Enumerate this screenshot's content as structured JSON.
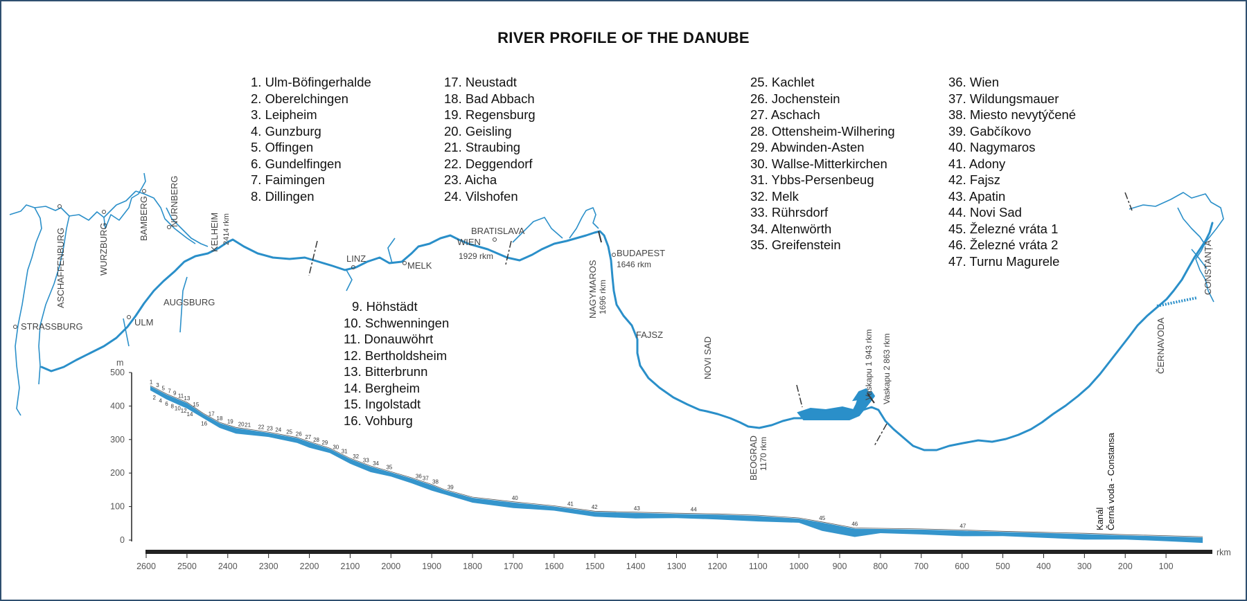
{
  "title": "RIVER PROFILE OF THE DANUBE",
  "legend_columns": [
    [
      "1. Ulm-Böfingerhalde",
      "2. Oberelchingen",
      "3. Leipheim",
      "4. Gunzburg",
      "5. Offingen",
      "6. Gundelfingen",
      "7. Faimingen",
      "8. Dillingen"
    ],
    [
      "17. Neustadt",
      "18. Bad Abbach",
      "19. Regensburg",
      "20. Geisling",
      "21. Straubing",
      "22. Deggendorf",
      "23. Aicha",
      "24. Vilshofen"
    ],
    [
      "9. Höhstädt",
      "10. Schwenningen",
      "11. Donauwöhrt",
      "12. Bertholdsheim",
      "13. Bitterbrunn",
      "14. Bergheim",
      "15. Ingolstadt",
      "16. Vohburg"
    ],
    [
      "25. Kachlet",
      "26. Jochenstein",
      "27. Aschach",
      "28. Ottensheim-Wilhering",
      "29. Abwinden-Asten",
      "30. Wallse-Mitterkirchen",
      "31. Ybbs-Persenbeug",
      "32. Melk",
      "33. Rührsdorf",
      "34. Altenwörth",
      "35. Greifenstein"
    ],
    [
      "36. Wien",
      "37. Wildungsmauer",
      "38. Miesto nevytýčené",
      "39. Gabčíkovo",
      "40. Nagymaros",
      "41. Adony",
      "42. Fajsz",
      "43. Apatin",
      "44. Novi Sad",
      "45. Železné vráta 1",
      "46. Železné vráta 2",
      "47. Turnu Magurele"
    ]
  ],
  "map_labels": {
    "strassburg": "STRASSBURG",
    "aschaffenburg": "ASCHAFFENBURG",
    "wurzburg": "WURZBURG",
    "bamberg": "BAMBERG",
    "nurnberg": "NURNBERG",
    "kelheim": "KELHEIM",
    "kelheim_rkm": "2414 rkm",
    "ulm": "ULM",
    "augsburg": "AUGSBURG",
    "linz": "LINZ",
    "melk": "MELK",
    "wien": "WIEN",
    "wien_rkm": "1929 rkm",
    "bratislava": "BRATISLAVA",
    "nagymaros": "NAGYMAROS",
    "nagymaros_rkm": "1696 rkm",
    "budapest": "BUDAPEST",
    "budapest_rkm": "1646 rkm",
    "fajsz": "FAJSZ",
    "novi_sad": "NOVI SAD",
    "beograd": "BEOGRAD",
    "beograd_rkm": "1170 rkm",
    "vaskapu1": "Vaskapu 1  943 rkm",
    "vaskapu2": "Vaskapu 2  863 rkm",
    "cernavoda": "ČERNAVODA",
    "constanta": "CONSTANȚA"
  },
  "colors": {
    "river": "#2a8fc9",
    "frame": "#2f4f6f",
    "axis": "#222222"
  },
  "chart_data": {
    "type": "area",
    "ylabel": "m",
    "xlabel": "rkm",
    "xlim": [
      2600,
      0
    ],
    "ylim": [
      0,
      500
    ],
    "yticks": [
      0,
      100,
      200,
      300,
      400,
      500
    ],
    "xticks": [
      2600,
      2500,
      2400,
      2300,
      2200,
      2100,
      2000,
      1900,
      1800,
      1700,
      1600,
      1500,
      1400,
      1300,
      1200,
      1100,
      1000,
      900,
      800,
      700,
      600,
      500,
      400,
      300,
      200,
      100
    ],
    "profile": {
      "x": [
        2590,
        2550,
        2500,
        2460,
        2420,
        2380,
        2300,
        2230,
        2200,
        2150,
        2100,
        2050,
        2000,
        1950,
        1900,
        1870,
        1800,
        1700,
        1600,
        1500,
        1400,
        1300,
        1200,
        1100,
        1000,
        943,
        863,
        800,
        700,
        600,
        500,
        400,
        300,
        200,
        100,
        10
      ],
      "y": [
        455,
        430,
        405,
        372,
        345,
        330,
        316,
        300,
        288,
        268,
        238,
        215,
        198,
        180,
        160,
        145,
        122,
        108,
        96,
        80,
        77,
        74,
        72,
        68,
        60,
        48,
        30,
        29,
        27,
        24,
        20,
        17,
        14,
        10,
        7,
        4
      ]
    },
    "dams": {
      "labels": [
        "1",
        "2",
        "3",
        "4",
        "5",
        "6",
        "7",
        "8",
        "9",
        "10",
        "11",
        "12",
        "13",
        "14",
        "15",
        "16",
        "17",
        "18",
        "19",
        "20",
        "21",
        "22",
        "23",
        "24",
        "25",
        "26",
        "27",
        "28",
        "29",
        "30",
        "31",
        "32",
        "33",
        "34",
        "35",
        "36",
        "37",
        "38",
        "39",
        "40",
        "41",
        "42",
        "43",
        "44",
        "45",
        "46",
        "47"
      ],
      "x": [
        2588,
        2580,
        2572,
        2565,
        2558,
        2550,
        2543,
        2536,
        2530,
        2523,
        2515,
        2508,
        2500,
        2493,
        2478,
        2458,
        2440,
        2420,
        2394,
        2367,
        2351,
        2318,
        2297,
        2276,
        2249,
        2226,
        2203,
        2183,
        2162,
        2135,
        2114,
        2086,
        2061,
        2037,
        2004,
        1932,
        1915,
        1891,
        1854,
        1696,
        1560,
        1501,
        1397,
        1258,
        943,
        863,
        598
      ]
    },
    "canal": {
      "x": 299,
      "label_line1": "Kanál",
      "label_line2": "Černá voda - Constansa"
    }
  }
}
